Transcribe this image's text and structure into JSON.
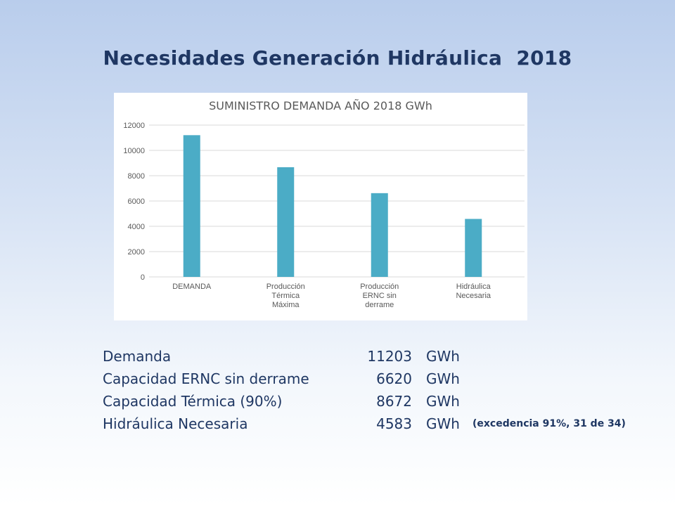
{
  "slide": {
    "title": "Necesidades Generación Hidráulica  2018"
  },
  "chart_data": {
    "type": "bar",
    "title": "SUMINISTRO DEMANDA AÑO 2018 GWh",
    "categories": [
      [
        "DEMANDA"
      ],
      [
        "Producción",
        "Térmica",
        "Máxima"
      ],
      [
        "Producción",
        "ERNC sin",
        "derrame"
      ],
      [
        "Hidráulica",
        "Necesaria"
      ]
    ],
    "values": [
      11203,
      8672,
      6620,
      4583
    ],
    "ylim": [
      0,
      12000
    ],
    "yticks": [
      0,
      2000,
      4000,
      6000,
      8000,
      10000,
      12000
    ],
    "grid": true,
    "legend": "none",
    "bar_color": "#4bacc6",
    "grid_color": "#d9d9d9",
    "text_color": "#595959"
  },
  "summary": {
    "rows": [
      {
        "label": "Demanda",
        "value": "11203",
        "unit": "GWh",
        "note": ""
      },
      {
        "label": "Capacidad ERNC sin derrame",
        "value": "6620",
        "unit": "GWh",
        "note": ""
      },
      {
        "label": "Capacidad Térmica (90%)",
        "value": "8672",
        "unit": "GWh",
        "note": ""
      },
      {
        "label": "Hidráulica Necesaria",
        "value": "4583",
        "unit": "GWh",
        "note": "(excedencia 91%, 31 de 34)"
      }
    ]
  },
  "colors": {
    "title": "#1f3763",
    "text": "#1f3763"
  }
}
